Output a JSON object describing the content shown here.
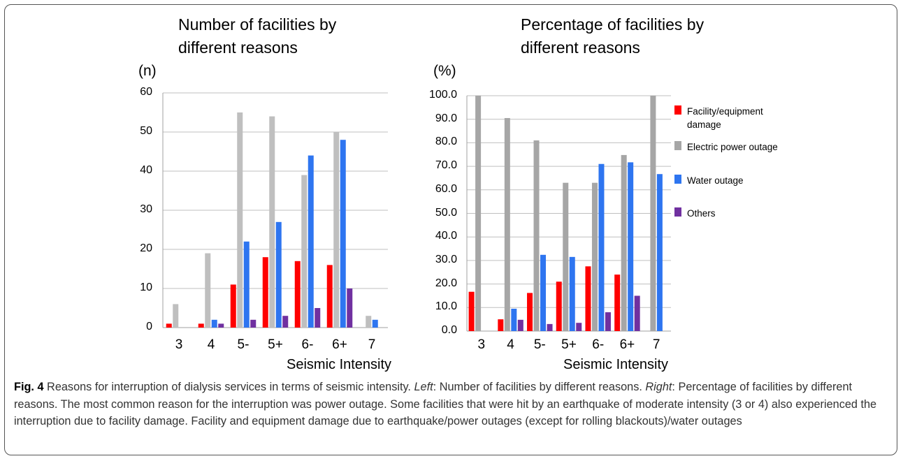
{
  "chart_data": [
    {
      "type": "bar",
      "title": [
        "Number of facilities by",
        "different reasons"
      ],
      "y_label": "(n)",
      "x_label": "Seismic Intensity",
      "categories": [
        "3",
        "4",
        "5-",
        "5+",
        "6-",
        "6+",
        "7"
      ],
      "series": [
        {
          "color": "#ff0000",
          "values": [
            1,
            1,
            11,
            18,
            17,
            16,
            0
          ]
        },
        {
          "color": "#bfbfbf",
          "values": [
            6,
            19,
            55,
            54,
            39,
            50,
            3
          ]
        },
        {
          "color": "#2e75f0",
          "values": [
            0,
            2,
            22,
            27,
            44,
            48,
            2
          ]
        },
        {
          "color": "#7030a0",
          "values": [
            0,
            1,
            2,
            3,
            5,
            10,
            0
          ]
        }
      ],
      "ylim": [
        0,
        60
      ],
      "yticks": [
        0,
        10,
        20,
        30,
        40,
        50,
        60
      ],
      "grid": true
    },
    {
      "type": "bar",
      "title": [
        "Percentage of facilities by",
        "different  reasons"
      ],
      "y_label": "(%)",
      "x_label": "Seismic Intensity",
      "categories": [
        "3",
        "4",
        "5-",
        "5+",
        "6-",
        "6+",
        "7"
      ],
      "series": [
        {
          "name": "Facility/equipment damage",
          "color": "#ff0000",
          "values": [
            16.7,
            5.0,
            16.2,
            21.0,
            27.5,
            24.0,
            0
          ]
        },
        {
          "name": "Electric power outage",
          "color": "#a6a6a6",
          "values": [
            100.0,
            90.5,
            81.0,
            63.0,
            63.0,
            74.8,
            100.0
          ]
        },
        {
          "name": "Water outage",
          "color": "#2e75f0",
          "values": [
            0,
            9.5,
            32.4,
            31.5,
            71.0,
            71.7,
            66.7
          ]
        },
        {
          "name": "Others",
          "color": "#7030a0",
          "values": [
            0,
            4.8,
            3.0,
            3.5,
            8.0,
            15.0,
            0
          ]
        }
      ],
      "ylim": [
        0,
        100
      ],
      "yticks": [
        {
          "value": 0,
          "label": "0.0"
        },
        {
          "value": 10,
          "label": "10.0"
        },
        {
          "value": 20,
          "label": "20.0"
        },
        {
          "value": 30,
          "label": "30.0"
        },
        {
          "value": 40,
          "label": "40.0"
        },
        {
          "value": 50,
          "label": "50.0"
        },
        {
          "value": 60,
          "label": "60.0"
        },
        {
          "value": 70,
          "label": "70.0"
        },
        {
          "value": 80,
          "label": "80.0"
        },
        {
          "value": 90,
          "label": "90.0"
        },
        {
          "value": 100,
          "label": "100.0"
        }
      ],
      "grid": true,
      "legend": "right"
    }
  ],
  "caption": [
    {
      "text": "Fig. 4",
      "style": "bold"
    },
    {
      "text": " Reasons for interruption of dialysis services in terms of seismic intensity. "
    },
    {
      "text": "Left",
      "style": "italic"
    },
    {
      "text": ": Number of facilities by different reasons. "
    },
    {
      "text": "Right",
      "style": "italic"
    },
    {
      "text": ": Percentage of facilities by different reasons. The most common reason for the interruption was power outage. Some facilities that were hit by an earthquake of moderate intensity (3 or 4) also experienced the interruption due to facility damage. Facility and equipment damage due to earthquake/power outages (except for rolling blackouts)/water outages"
    }
  ]
}
